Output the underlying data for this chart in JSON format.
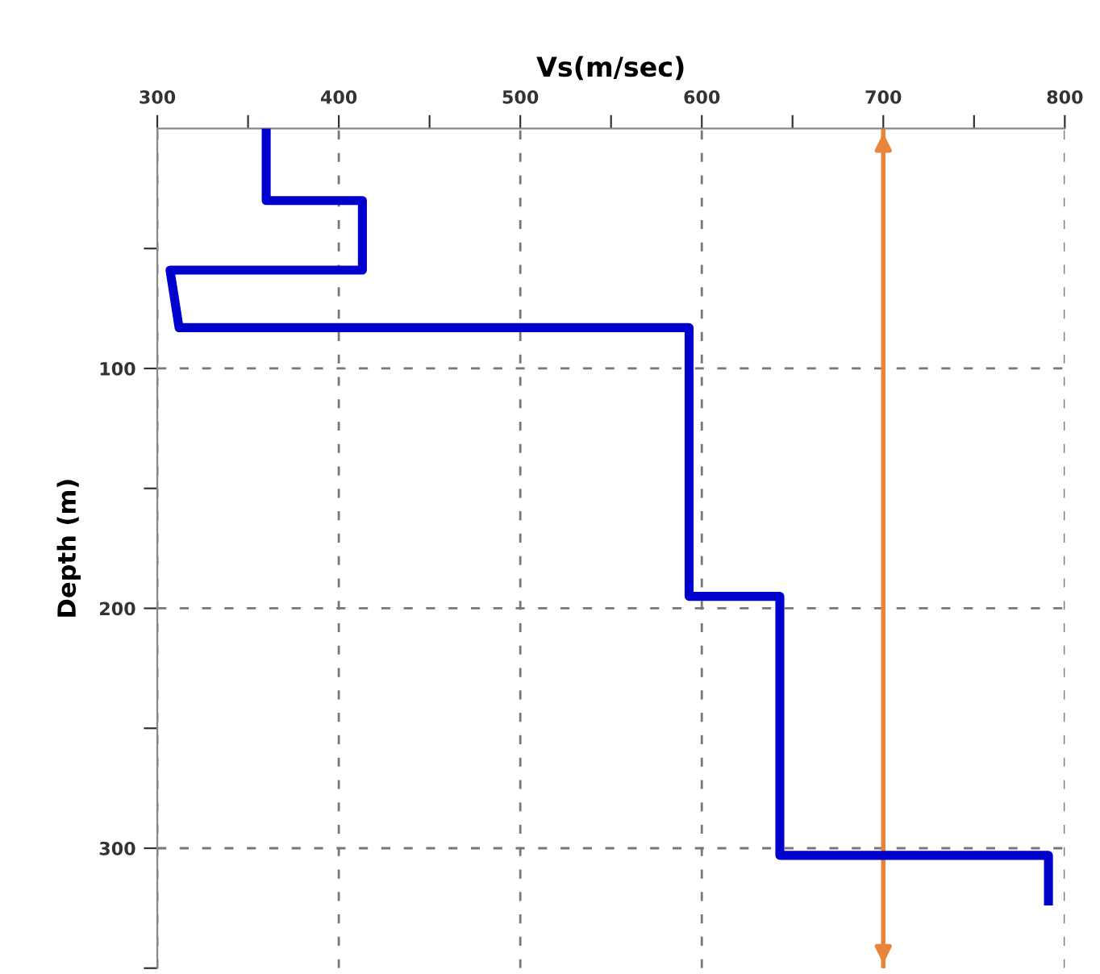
{
  "chart_data": {
    "type": "line",
    "xlabel": "Vs(m/sec)",
    "ylabel": "Depth (m)",
    "x": [
      360,
      360,
      413,
      413,
      307,
      312,
      593,
      593,
      643,
      643,
      791,
      791
    ],
    "series": [
      {
        "color": "#0000cc",
        "values": [
          0,
          30,
          30,
          59,
          59,
          83,
          83,
          195,
          195,
          303,
          303,
          322
        ]
      }
    ],
    "xlim": [
      300,
      800
    ],
    "xticks": [
      300,
      {
        "value": 350,
        "label": null
      },
      400,
      {
        "value": 450,
        "label": null
      },
      500,
      {
        "value": 550,
        "label": null
      },
      600,
      {
        "value": 650,
        "label": null
      },
      700,
      {
        "value": 750,
        "label": null
      },
      800
    ],
    "ylim": [
      350,
      0
    ],
    "yticks": [
      {
        "value": 50,
        "label": null
      },
      100,
      {
        "value": 150,
        "label": null
      },
      200,
      {
        "value": 250,
        "label": null
      },
      300,
      {
        "value": 350,
        "label": null
      }
    ],
    "grid": true,
    "marker": "none",
    "line_style": "solid",
    "ref_lines": [
      {
        "axis": "x",
        "value": 700,
        "color": "#e8853a"
      }
    ]
  }
}
